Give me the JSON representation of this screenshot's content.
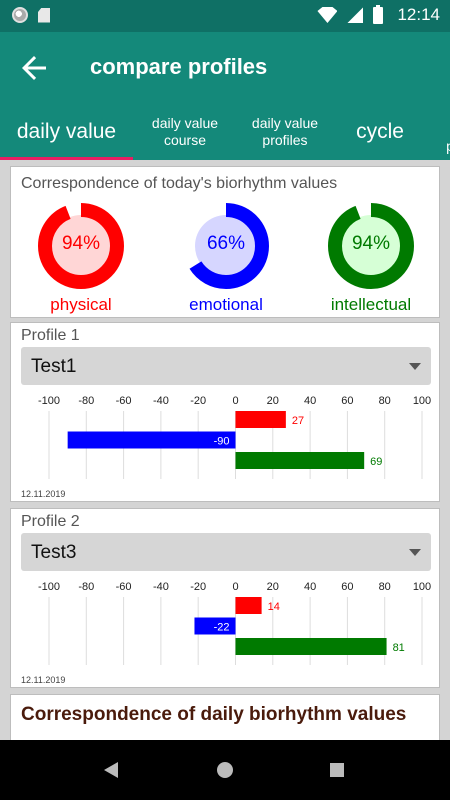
{
  "status": {
    "time": "12:14"
  },
  "appbar": {
    "title": "compare profiles"
  },
  "tabs": [
    {
      "label": "daily value",
      "active": true
    },
    {
      "label": "daily value course"
    },
    {
      "label": "daily value profiles"
    },
    {
      "label": "cycle"
    },
    {
      "label": "p"
    }
  ],
  "correspondence": {
    "title": "Correspondence of today's biorhythm values",
    "gauges": [
      {
        "label": "physical",
        "value": 94,
        "text": "94%",
        "color": "#ff0000",
        "fill": "#ffd6d6"
      },
      {
        "label": "emotional",
        "value": 66,
        "text": "66%",
        "color": "#0000ff",
        "fill": "#d6d6ff"
      },
      {
        "label": "intellectual",
        "value": 94,
        "text": "94%",
        "color": "#007a00",
        "fill": "#d6ffd6"
      }
    ]
  },
  "profiles": [
    {
      "title": "Profile 1",
      "selected": "Test1",
      "date": "12.11.2019",
      "values": [
        27,
        -90,
        69
      ]
    },
    {
      "title": "Profile 2",
      "selected": "Test3",
      "date": "12.11.2019",
      "values": [
        14,
        -22,
        81
      ]
    }
  ],
  "chart_data": [
    {
      "type": "bar",
      "orientation": "horizontal",
      "xticks": [
        -100,
        -80,
        -60,
        -40,
        -20,
        0,
        20,
        40,
        60,
        80,
        100
      ],
      "xlim": [
        -100,
        100
      ],
      "series": [
        {
          "name": "physical",
          "color": "#ff0000",
          "value": 27
        },
        {
          "name": "emotional",
          "color": "#0000ff",
          "value": -90
        },
        {
          "name": "intellectual",
          "color": "#007a00",
          "value": 69
        }
      ]
    },
    {
      "type": "bar",
      "orientation": "horizontal",
      "xticks": [
        -100,
        -80,
        -60,
        -40,
        -20,
        0,
        20,
        40,
        60,
        80,
        100
      ],
      "xlim": [
        -100,
        100
      ],
      "series": [
        {
          "name": "physical",
          "color": "#ff0000",
          "value": 14
        },
        {
          "name": "emotional",
          "color": "#0000ff",
          "value": -22
        },
        {
          "name": "intellectual",
          "color": "#007a00",
          "value": 81
        }
      ]
    }
  ],
  "bottom_card": {
    "title": "Correspondence of daily biorhythm values"
  },
  "icons": {
    "back": "arrow-back-icon",
    "wifi": "wifi-icon",
    "signal": "signal-icon",
    "battery": "battery-icon"
  }
}
